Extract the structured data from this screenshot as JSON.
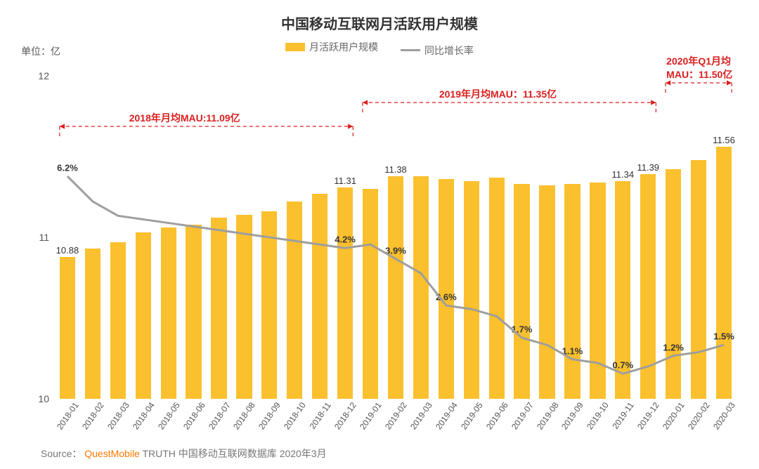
{
  "title": "中国移动互联网月活跃用户规模",
  "unit_label": "单位：亿",
  "legend": {
    "bar": "月活跃用户规模",
    "line": "同比增长率"
  },
  "colors": {
    "bar": "#fbc02d",
    "line": "#9e9e9e",
    "background": "#ffffff",
    "annotation": "#d91e1e",
    "text": "#333333",
    "axis_text": "#555555"
  },
  "chart": {
    "type": "bar+line",
    "categories": [
      "2018-01",
      "2018-02",
      "2018-03",
      "2018-04",
      "2018-05",
      "2018-06",
      "2018-07",
      "2018-08",
      "2018-09",
      "2018-10",
      "2018-11",
      "2018-12",
      "2019-01",
      "2019-02",
      "2019-03",
      "2019-04",
      "2019-05",
      "2019-06",
      "2019-07",
      "2019-08",
      "2019-09",
      "2019-10",
      "2019-11",
      "2019-12",
      "2020-01",
      "2020-02",
      "2020-03"
    ],
    "bar_values": [
      10.88,
      10.93,
      10.97,
      11.03,
      11.06,
      11.08,
      11.12,
      11.14,
      11.16,
      11.22,
      11.27,
      11.31,
      11.3,
      11.38,
      11.38,
      11.36,
      11.35,
      11.37,
      11.33,
      11.32,
      11.33,
      11.34,
      11.35,
      11.39,
      11.42,
      11.48,
      11.56
    ],
    "bar_value_labels": {
      "0": "10.88",
      "11": "11.31",
      "13": "11.38",
      "22": "11.34",
      "23": "11.39",
      "26": "11.56"
    },
    "line_values_pct": [
      6.2,
      5.5,
      5.1,
      5.0,
      4.9,
      4.8,
      4.7,
      4.6,
      4.5,
      4.4,
      4.3,
      4.2,
      4.3,
      3.9,
      3.5,
      2.6,
      2.5,
      2.3,
      1.7,
      1.5,
      1.1,
      1.0,
      0.7,
      0.9,
      1.2,
      1.3,
      1.5
    ],
    "line_value_labels": {
      "0": "6.2%",
      "11": "4.2%",
      "13": "3.9%",
      "15": "2.6%",
      "18": "1.7%",
      "20": "1.1%",
      "22": "0.7%",
      "24": "1.2%",
      "26": "1.5%"
    },
    "y_axis": {
      "min": 10,
      "max": 12,
      "ticks": [
        10,
        11,
        12
      ]
    },
    "line_y_axis": {
      "min": 0,
      "max": 9
    },
    "bar_width_ratio": 0.62
  },
  "annotations": {
    "a2018": "2018年月均MAU:11.09亿",
    "a2019": "2019年月均MAU：11.35亿",
    "a2020_l1": "2020年Q1月均",
    "a2020_l2": "MAU：11.50亿"
  },
  "source": {
    "prefix": "Source：",
    "brand": "QuestMobile",
    "suffix": "TRUTH 中国移动互联网数据库 2020年3月"
  }
}
